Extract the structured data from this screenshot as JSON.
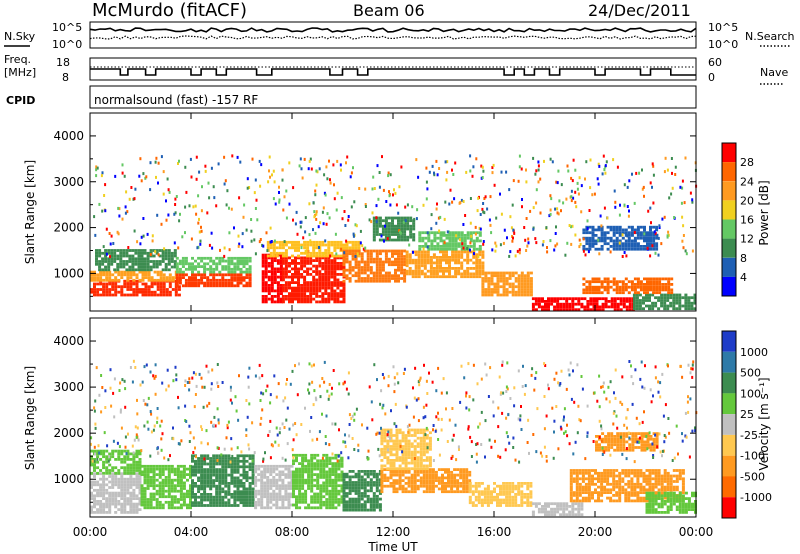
{
  "header": {
    "station": "McMurdo (fitACF)",
    "beam": "Beam 06",
    "date": "24/Dec/2011"
  },
  "top_panels": {
    "nsky_label": "N.Sky",
    "nsky_ticks": [
      "10^5",
      "10^0"
    ],
    "nsearch_label": "N.Search",
    "nsearch_ticks": [
      "10^5",
      "10^0"
    ],
    "freq_label_1": "Freq.",
    "freq_label_2": "[MHz]",
    "freq_ticks": [
      "18",
      "8"
    ],
    "nave_label": "Nave",
    "nave_ticks": [
      "60",
      "0"
    ],
    "cpid_label": "CPID",
    "cpid_text": "normalsound (fast) -157 RF"
  },
  "colors": {
    "axis": "#000000",
    "scatter_white": "#ffffff"
  },
  "chart_data": [
    {
      "type": "heatmap",
      "name": "power",
      "ylabel": "Slant Range [km]",
      "ylim": [
        180,
        4500
      ],
      "yticks": [
        "1000",
        "2000",
        "3000",
        "4000"
      ],
      "colorbar_label": "Power [dB]",
      "colorbar_ticks": [
        "4",
        "8",
        "12",
        "16",
        "20",
        "24",
        "28"
      ],
      "colorbar_colors": [
        "#0000ff",
        "#1e5fb4",
        "#3c8c50",
        "#64c864",
        "#f0d020",
        "#ff9a20",
        "#ff6600",
        "#ff0000"
      ],
      "bands": [
        {
          "t0": 0.0,
          "t1": 3.6,
          "r0": 500,
          "r1": 820,
          "c": "#ff2a00"
        },
        {
          "t0": 0.0,
          "t1": 3.6,
          "r0": 820,
          "r1": 1050,
          "c": "#ffa020"
        },
        {
          "t0": 0.2,
          "t1": 3.4,
          "r0": 1050,
          "r1": 1500,
          "c": "#3c8c50"
        },
        {
          "t0": 3.4,
          "t1": 6.4,
          "r0": 700,
          "r1": 1000,
          "c": "#ff3a00"
        },
        {
          "t0": 3.4,
          "t1": 6.4,
          "r0": 1000,
          "r1": 1350,
          "c": "#64c864"
        },
        {
          "t0": 6.8,
          "t1": 7.6,
          "r0": 350,
          "r1": 1400,
          "c": "#ff0000"
        },
        {
          "t0": 7.6,
          "t1": 10.0,
          "r0": 350,
          "r1": 1350,
          "c": "#ff1a00"
        },
        {
          "t0": 7.0,
          "t1": 10.6,
          "r0": 1350,
          "r1": 1700,
          "c": "#ffc020"
        },
        {
          "t0": 10.0,
          "t1": 12.5,
          "r0": 800,
          "r1": 1500,
          "c": "#ff7a10"
        },
        {
          "t0": 11.2,
          "t1": 12.8,
          "r0": 1700,
          "r1": 2200,
          "c": "#3c8c50"
        },
        {
          "t0": 12.5,
          "t1": 15.5,
          "r0": 900,
          "r1": 1500,
          "c": "#ffa020"
        },
        {
          "t0": 13.0,
          "t1": 15.5,
          "r0": 1500,
          "r1": 1900,
          "c": "#64c864"
        },
        {
          "t0": 15.5,
          "t1": 17.5,
          "r0": 500,
          "r1": 1000,
          "c": "#ff9a20"
        },
        {
          "t0": 17.5,
          "t1": 21.5,
          "r0": 180,
          "r1": 450,
          "c": "#ff0000"
        },
        {
          "t0": 21.5,
          "t1": 24.0,
          "r0": 200,
          "r1": 550,
          "c": "#3c8c50"
        },
        {
          "t0": 19.5,
          "t1": 23.0,
          "r0": 550,
          "r1": 900,
          "c": "#ff6600"
        },
        {
          "t0": 19.5,
          "t1": 22.5,
          "r0": 1500,
          "r1": 2000,
          "c": "#1e5fb4"
        }
      ]
    },
    {
      "type": "heatmap",
      "name": "velocity",
      "ylabel": "Slant Range [km]",
      "ylim": [
        180,
        4500
      ],
      "yticks": [
        "1000",
        "2000",
        "3000",
        "4000"
      ],
      "xlabel": "Time UT",
      "xlim": [
        0,
        24
      ],
      "xticks": [
        "00:00",
        "04:00",
        "08:00",
        "12:00",
        "16:00",
        "20:00",
        "00:00"
      ],
      "colorbar_label": "Velocity [m s⁻¹]",
      "colorbar_ticks": [
        "1000",
        "500",
        "100",
        "25",
        "-25",
        "-100",
        "-500",
        "-1000"
      ],
      "colorbar_colors": [
        "#1e3cc8",
        "#2e7aa8",
        "#3c8c50",
        "#64c83c",
        "#c0c0c0",
        "#ffc850",
        "#ff9a20",
        "#ff6a00",
        "#ff0000"
      ],
      "bands": [
        {
          "t0": 0.0,
          "t1": 2.0,
          "r0": 250,
          "r1": 1100,
          "c": "#c0c0c0"
        },
        {
          "t0": 0.0,
          "t1": 2.0,
          "r0": 1100,
          "r1": 1600,
          "c": "#64c83c"
        },
        {
          "t0": 2.0,
          "t1": 4.0,
          "r0": 350,
          "r1": 1300,
          "c": "#64c83c"
        },
        {
          "t0": 4.0,
          "t1": 6.5,
          "r0": 400,
          "r1": 1500,
          "c": "#3c8c50"
        },
        {
          "t0": 6.5,
          "t1": 8.0,
          "r0": 350,
          "r1": 1300,
          "c": "#c0c0c0"
        },
        {
          "t0": 8.0,
          "t1": 10.0,
          "r0": 350,
          "r1": 1500,
          "c": "#64c83c"
        },
        {
          "t0": 10.0,
          "t1": 11.5,
          "r0": 300,
          "r1": 1200,
          "c": "#3c8c50"
        },
        {
          "t0": 11.5,
          "t1": 15.0,
          "r0": 700,
          "r1": 1200,
          "c": "#ff9a20"
        },
        {
          "t0": 11.5,
          "t1": 13.5,
          "r0": 1200,
          "r1": 2100,
          "c": "#ffc850"
        },
        {
          "t0": 15.0,
          "t1": 17.5,
          "r0": 400,
          "r1": 900,
          "c": "#ffc850"
        },
        {
          "t0": 17.5,
          "t1": 19.5,
          "r0": 200,
          "r1": 450,
          "c": "#c0c0c0"
        },
        {
          "t0": 19.0,
          "t1": 23.5,
          "r0": 500,
          "r1": 1200,
          "c": "#ff9a20"
        },
        {
          "t0": 20.0,
          "t1": 22.5,
          "r0": 1600,
          "r1": 2000,
          "c": "#ff9a20"
        },
        {
          "t0": 22.0,
          "t1": 24.0,
          "r0": 250,
          "r1": 700,
          "c": "#64c83c"
        }
      ]
    }
  ]
}
